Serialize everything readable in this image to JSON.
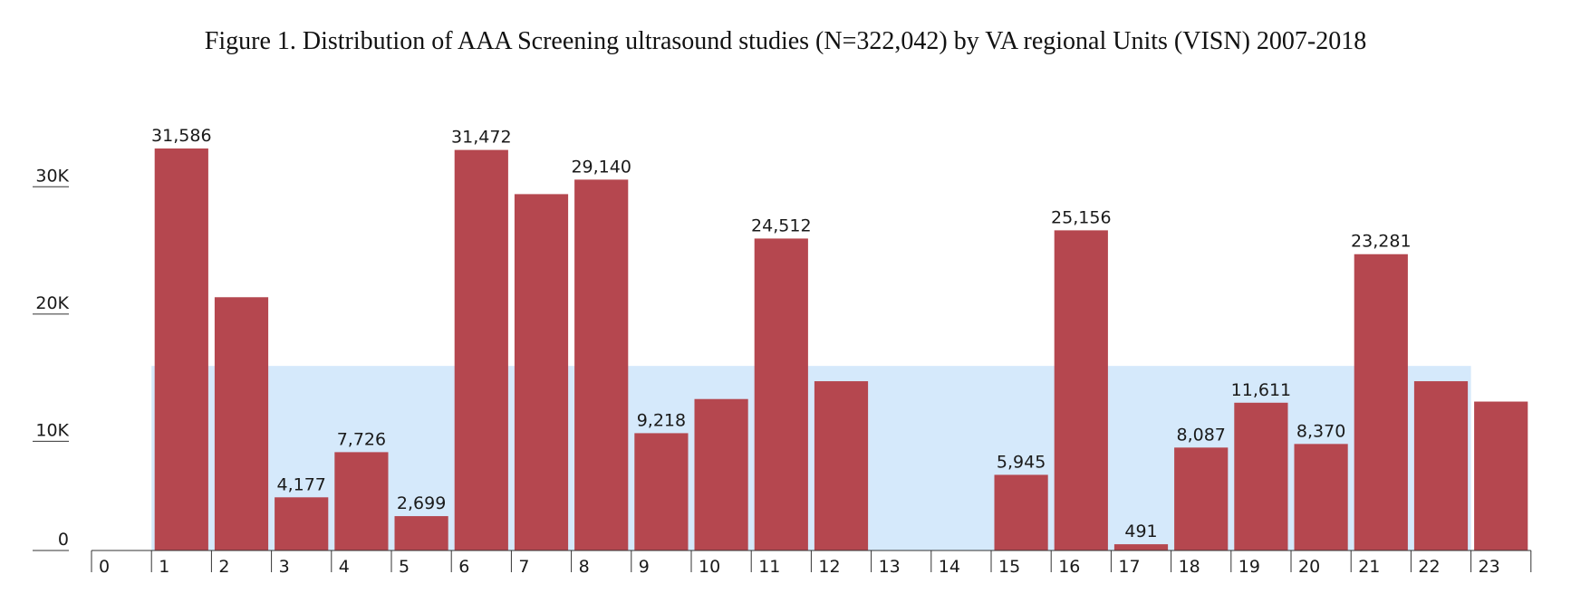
{
  "title": "Figure 1. Distribution of AAA Screening ultrasound studies (N=322,042) by VA regional Units (VISN) 2007-2018",
  "colors": {
    "bar": "#b5474f",
    "band": "#d5e9fb",
    "axis": "#333333"
  },
  "chart_data": {
    "type": "bar",
    "title": "Figure 1. Distribution of AAA Screening ultrasound studies (N=322,042) by VA regional Units (VISN) 2007-2018",
    "xlabel": "",
    "ylabel": "",
    "categories": [
      "0",
      "1",
      "2",
      "3",
      "4",
      "5",
      "6",
      "7",
      "8",
      "9",
      "10",
      "11",
      "12",
      "13",
      "14",
      "15",
      "16",
      "17",
      "18",
      "19",
      "20",
      "21",
      "22",
      "23"
    ],
    "values": [
      0,
      31586,
      19900,
      4177,
      7726,
      2699,
      31472,
      28000,
      29140,
      9218,
      11900,
      24512,
      13300,
      0,
      0,
      5945,
      25156,
      491,
      8087,
      11611,
      8370,
      23281,
      13300,
      11700
    ],
    "data_labels": [
      "",
      "31,586",
      "",
      "4,177",
      "7,726",
      "2,699",
      "31,472",
      "",
      "29,140",
      "9,218",
      "",
      "24,512",
      "",
      "",
      "",
      "5,945",
      "25,156",
      "491",
      "8,087",
      "11,611",
      "8,370",
      "23,281",
      "",
      ""
    ],
    "yticks": [
      0,
      10000,
      20000,
      30000
    ],
    "ytick_labels": [
      "0",
      "10K",
      "20K",
      "30K"
    ],
    "ylim": [
      0,
      31586
    ],
    "band": {
      "y": 14500,
      "x_start": 1,
      "x_end": 23
    },
    "grid": false,
    "legend": "none"
  }
}
